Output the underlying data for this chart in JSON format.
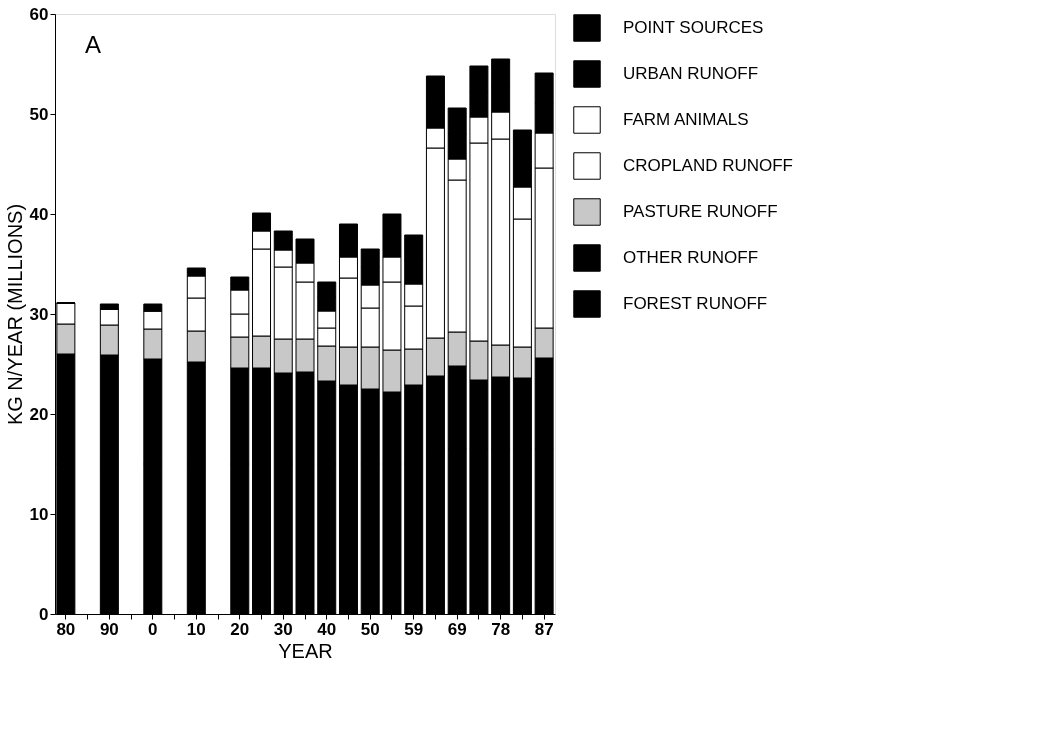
{
  "chart_data": {
    "type": "bar",
    "stacked": true,
    "xlabel": "YEAR",
    "ylabel": "KG N/YEAR (MILLIONS)",
    "annotations": [
      "A"
    ],
    "categories": [
      "80",
      null,
      "90",
      null,
      "0",
      null,
      "10",
      null,
      "20",
      null,
      "30",
      null,
      "40",
      null,
      "50",
      null,
      "59",
      null,
      "69",
      null,
      "78",
      null,
      "87"
    ],
    "ylim": [
      0,
      60
    ],
    "yticks": [
      0,
      10,
      20,
      30,
      40,
      50,
      60
    ],
    "grid": false,
    "legend": "right",
    "series": [
      {
        "name": "FOREST RUNOFF",
        "color": "#000000",
        "values": [
          15,
          null,
          15,
          null,
          15,
          null,
          15,
          null,
          15,
          15,
          15,
          15,
          15,
          15,
          15,
          15,
          15,
          16.5,
          16.5,
          16.5,
          16.5,
          16.5,
          16.5
        ]
      },
      {
        "name": "OTHER RUNOFF",
        "color": "#000000",
        "values": [
          11.0,
          null,
          10.9,
          null,
          10.5,
          null,
          10.2,
          null,
          9.6,
          9.6,
          9.1,
          9.2,
          8.3,
          7.9,
          7.5,
          7.2,
          7.9,
          7.3,
          8.3,
          6.9,
          7.2,
          7.1,
          9.1
        ]
      },
      {
        "name": "PASTURE RUNOFF",
        "color": "#c8c8c8",
        "values": [
          3.0,
          null,
          3.0,
          null,
          3.0,
          null,
          3.1,
          null,
          3.1,
          3.2,
          3.4,
          3.3,
          3.5,
          3.8,
          4.2,
          4.2,
          3.6,
          3.8,
          3.4,
          3.9,
          3.2,
          3.1,
          3.0
        ]
      },
      {
        "name": "CROPLAND RUNOFF",
        "color": "#ffffff",
        "values": [
          2.1,
          null,
          1.6,
          null,
          1.8,
          null,
          3.3,
          null,
          2.3,
          8.7,
          7.2,
          5.7,
          1.8,
          6.9,
          3.9,
          6.8,
          4.3,
          19.0,
          15.2,
          19.8,
          20.6,
          12.8,
          16.0
        ]
      },
      {
        "name": "FARM ANIMALS",
        "color": "#ffffff",
        "values": [
          0,
          null,
          0,
          null,
          0,
          null,
          2.2,
          null,
          2.4,
          1.8,
          1.7,
          1.9,
          1.7,
          2.1,
          2.3,
          2.5,
          2.2,
          2.0,
          2.1,
          2.6,
          2.7,
          3.2,
          3.5
        ]
      },
      {
        "name": "URBAN RUNOFF",
        "color": "#000000",
        "values": [
          0,
          null,
          0,
          null,
          0.3,
          null,
          0.4,
          null,
          0.6,
          0.9,
          0.9,
          1.2,
          1.4,
          1.6,
          1.8,
          2.1,
          2.4,
          2.6,
          2.5,
          2.5,
          2.6,
          2.8,
          3.0
        ]
      },
      {
        "name": "POINT SOURCES",
        "color": "#000000",
        "values": [
          0,
          null,
          0.5,
          null,
          0.4,
          null,
          0.4,
          null,
          0.7,
          0.9,
          1.0,
          1.2,
          1.5,
          1.7,
          1.8,
          2.2,
          2.5,
          2.6,
          2.6,
          2.6,
          2.7,
          2.9,
          3.0
        ]
      }
    ]
  }
}
